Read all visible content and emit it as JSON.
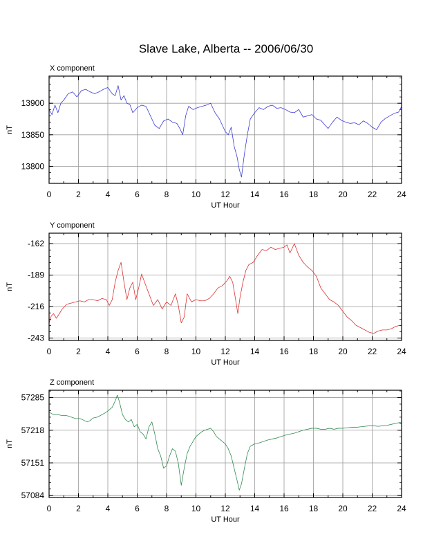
{
  "figure": {
    "title": "Slave Lake, Alberta -- 2006/06/30"
  },
  "chart_data": [
    {
      "type": "line",
      "title": "X component",
      "xlabel": "UT Hour",
      "ylabel": "nT",
      "xlim": [
        0,
        24
      ],
      "ylim": [
        13773,
        13943
      ],
      "xticks": [
        0,
        2,
        4,
        6,
        8,
        10,
        12,
        14,
        16,
        18,
        20,
        22,
        24
      ],
      "yticks": [
        13800,
        13850,
        13900
      ],
      "grid": true,
      "color": "#3b3bd6",
      "series": [
        {
          "x": [
            0,
            0.2,
            0.4,
            0.6,
            0.8,
            1.0,
            1.3,
            1.6,
            1.9,
            2.2,
            2.5,
            2.8,
            3.1,
            3.4,
            3.7,
            4.0,
            4.3,
            4.5,
            4.7,
            4.9,
            5.1,
            5.3,
            5.5,
            5.7,
            6.0,
            6.3,
            6.6,
            6.9,
            7.2,
            7.5,
            7.8,
            8.1,
            8.4,
            8.7,
            8.9,
            9.1,
            9.3,
            9.5,
            9.8,
            10.1,
            10.4,
            10.7,
            11.0,
            11.3,
            11.6,
            11.8,
            12.0,
            12.2,
            12.4,
            12.6,
            12.8,
            12.95,
            13.1,
            13.3,
            13.5,
            13.7,
            14.0,
            14.3,
            14.6,
            14.9,
            15.2,
            15.5,
            15.8,
            16.1,
            16.4,
            16.7,
            17.0,
            17.3,
            17.6,
            17.9,
            18.2,
            18.5,
            18.8,
            19.0,
            19.3,
            19.6,
            19.9,
            20.2,
            20.5,
            20.8,
            21.1,
            21.4,
            21.7,
            22.0,
            22.3,
            22.6,
            22.9,
            23.2,
            23.5,
            23.8,
            24.0
          ],
          "values": [
            13890,
            13882,
            13897,
            13885,
            13900,
            13905,
            13915,
            13918,
            13910,
            13920,
            13922,
            13918,
            13915,
            13918,
            13922,
            13925,
            13915,
            13912,
            13928,
            13905,
            13912,
            13900,
            13898,
            13885,
            13893,
            13897,
            13895,
            13880,
            13865,
            13860,
            13872,
            13875,
            13870,
            13868,
            13860,
            13850,
            13880,
            13895,
            13890,
            13893,
            13895,
            13897,
            13900,
            13885,
            13875,
            13865,
            13855,
            13850,
            13862,
            13832,
            13815,
            13795,
            13783,
            13820,
            13850,
            13875,
            13885,
            13893,
            13890,
            13895,
            13897,
            13892,
            13893,
            13890,
            13886,
            13885,
            13890,
            13878,
            13880,
            13882,
            13875,
            13873,
            13865,
            13860,
            13870,
            13878,
            13873,
            13870,
            13868,
            13869,
            13866,
            13872,
            13868,
            13862,
            13858,
            13870,
            13876,
            13880,
            13884,
            13886,
            13895
          ]
        }
      ]
    },
    {
      "type": "line",
      "title": "Y component",
      "xlabel": "UT Hour",
      "ylabel": "nT",
      "xlim": [
        0,
        24
      ],
      "ylim": [
        -245,
        -153
      ],
      "xticks": [
        0,
        2,
        4,
        6,
        8,
        10,
        12,
        14,
        16,
        18,
        20,
        22,
        24
      ],
      "yticks": [
        -243,
        -216,
        -189,
        -162
      ],
      "grid": true,
      "color": "#e03030",
      "series": [
        {
          "x": [
            0,
            0.15,
            0.3,
            0.5,
            0.7,
            0.9,
            1.2,
            1.5,
            1.8,
            2.1,
            2.4,
            2.7,
            3.0,
            3.3,
            3.6,
            3.9,
            4.1,
            4.3,
            4.5,
            4.7,
            4.9,
            5.1,
            5.3,
            5.5,
            5.7,
            5.9,
            6.1,
            6.3,
            6.5,
            6.8,
            7.1,
            7.4,
            7.7,
            8.0,
            8.3,
            8.6,
            8.8,
            9.0,
            9.2,
            9.4,
            9.7,
            10.0,
            10.3,
            10.6,
            10.9,
            11.2,
            11.5,
            11.8,
            12.1,
            12.3,
            12.5,
            12.7,
            12.85,
            13.0,
            13.2,
            13.4,
            13.6,
            13.9,
            14.2,
            14.5,
            14.8,
            15.1,
            15.4,
            15.7,
            16.0,
            16.2,
            16.4,
            16.7,
            17.0,
            17.3,
            17.6,
            17.9,
            18.2,
            18.5,
            18.8,
            19.1,
            19.4,
            19.7,
            20.0,
            20.3,
            20.6,
            20.9,
            21.2,
            21.5,
            21.8,
            22.1,
            22.4,
            22.7,
            23.0,
            23.3,
            23.6,
            23.9,
            24.0
          ],
          "values": [
            -230,
            -224,
            -222,
            -226,
            -222,
            -218,
            -214,
            -213,
            -212,
            -211,
            -212,
            -210,
            -210,
            -211,
            -209,
            -210,
            -215,
            -210,
            -195,
            -185,
            -178,
            -195,
            -210,
            -200,
            -195,
            -210,
            -200,
            -188,
            -195,
            -205,
            -215,
            -210,
            -218,
            -212,
            -215,
            -205,
            -215,
            -230,
            -225,
            -205,
            -212,
            -210,
            -211,
            -211,
            -209,
            -205,
            -200,
            -198,
            -194,
            -190,
            -195,
            -210,
            -222,
            -208,
            -195,
            -185,
            -180,
            -178,
            -172,
            -167,
            -168,
            -165,
            -167,
            -166,
            -165,
            -163,
            -170,
            -162,
            -172,
            -178,
            -182,
            -185,
            -190,
            -200,
            -205,
            -210,
            -212,
            -215,
            -220,
            -225,
            -228,
            -232,
            -234,
            -236,
            -238,
            -239,
            -237,
            -236,
            -236,
            -235,
            -233,
            -232,
            -232
          ]
        }
      ]
    },
    {
      "type": "line",
      "title": "Z component",
      "xlabel": "UT Hour",
      "ylabel": "nT",
      "xlim": [
        0,
        24
      ],
      "ylim": [
        57080,
        57300
      ],
      "xticks": [
        0,
        2,
        4,
        6,
        8,
        10,
        12,
        14,
        16,
        18,
        20,
        22,
        24
      ],
      "yticks": [
        57084,
        57151,
        57218,
        57285
      ],
      "grid": true,
      "color": "#2f8a4f",
      "series": [
        {
          "x": [
            0,
            0.3,
            0.6,
            0.9,
            1.2,
            1.5,
            1.8,
            2.1,
            2.4,
            2.6,
            2.8,
            3.0,
            3.3,
            3.6,
            3.9,
            4.1,
            4.3,
            4.5,
            4.65,
            4.8,
            5.0,
            5.2,
            5.4,
            5.6,
            5.8,
            6.0,
            6.2,
            6.4,
            6.6,
            6.8,
            7.0,
            7.2,
            7.4,
            7.6,
            7.8,
            8.0,
            8.2,
            8.4,
            8.6,
            8.8,
            9.0,
            9.2,
            9.4,
            9.6,
            9.8,
            10.0,
            10.2,
            10.4,
            10.6,
            10.8,
            11.0,
            11.2,
            11.4,
            11.6,
            11.8,
            12.0,
            12.2,
            12.4,
            12.6,
            12.8,
            12.95,
            13.1,
            13.3,
            13.5,
            13.7,
            14.0,
            14.3,
            14.6,
            14.9,
            15.2,
            15.5,
            15.8,
            16.1,
            16.4,
            16.7,
            17.0,
            17.3,
            17.6,
            17.9,
            18.2,
            18.5,
            18.8,
            19.1,
            19.4,
            19.7,
            20.0,
            20.3,
            20.6,
            20.9,
            21.2,
            21.5,
            21.8,
            22.1,
            22.4,
            22.7,
            23.0,
            23.3,
            23.6,
            23.9,
            24.0
          ],
          "values": [
            57255,
            57250,
            57250,
            57248,
            57248,
            57245,
            57242,
            57242,
            57238,
            57235,
            57238,
            57243,
            57245,
            57250,
            57255,
            57260,
            57265,
            57278,
            57290,
            57275,
            57250,
            57240,
            57235,
            57240,
            57225,
            57230,
            57215,
            57210,
            57200,
            57225,
            57235,
            57210,
            57180,
            57165,
            57140,
            57145,
            57165,
            57180,
            57175,
            57150,
            57105,
            57140,
            57170,
            57185,
            57195,
            57205,
            57210,
            57215,
            57218,
            57220,
            57222,
            57215,
            57205,
            57200,
            57195,
            57190,
            57180,
            57165,
            57140,
            57115,
            57095,
            57108,
            57140,
            57170,
            57185,
            57190,
            57192,
            57195,
            57198,
            57200,
            57202,
            57205,
            57208,
            57210,
            57212,
            57215,
            57218,
            57220,
            57222,
            57222,
            57220,
            57220,
            57222,
            57220,
            57222,
            57222,
            57223,
            57224,
            57224,
            57225,
            57226,
            57227,
            57227,
            57226,
            57227,
            57228,
            57230,
            57232,
            57234,
            57235
          ]
        }
      ]
    }
  ]
}
